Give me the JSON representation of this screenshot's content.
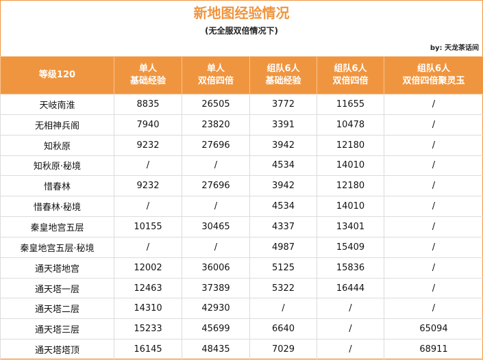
{
  "title": "新地图经验情况",
  "subtitle": "(无全服双倍情况下)",
  "byline": "by:  天龙茶话间",
  "columns": [
    {
      "line1": "等级120",
      "line2": ""
    },
    {
      "line1": "单人",
      "line2": "基础经验"
    },
    {
      "line1": "单人",
      "line2": "双倍四倍"
    },
    {
      "line1": "组队6人",
      "line2": "基础经验"
    },
    {
      "line1": "组队6人",
      "line2": "双倍四倍"
    },
    {
      "line1": "组队6人",
      "line2": "双倍四倍聚灵玉"
    }
  ],
  "rows": [
    [
      "天岐南淮",
      "8835",
      "26505",
      "3772",
      "11655",
      "/"
    ],
    [
      "无相神兵阁",
      "7940",
      "23820",
      "3391",
      "10478",
      "/"
    ],
    [
      "知秋原",
      "9232",
      "27696",
      "3942",
      "12180",
      "/"
    ],
    [
      "知秋原·秘境",
      "/",
      "/",
      "4534",
      "14010",
      "/"
    ],
    [
      "惜春林",
      "9232",
      "27696",
      "3942",
      "12180",
      "/"
    ],
    [
      "惜春林·秘境",
      "/",
      "/",
      "4534",
      "14010",
      "/"
    ],
    [
      "秦皇地宫五层",
      "10155",
      "30465",
      "4337",
      "13401",
      "/"
    ],
    [
      "秦皇地宫五层·秘境",
      "/",
      "/",
      "4987",
      "15409",
      "/"
    ],
    [
      "通天塔地宫",
      "12002",
      "36006",
      "5125",
      "15836",
      "/"
    ],
    [
      "通天塔一层",
      "12463",
      "37389",
      "5322",
      "16444",
      "/"
    ],
    [
      "通天塔二层",
      "14310",
      "42930",
      "/",
      "/",
      "/"
    ],
    [
      "通天塔三层",
      "15233",
      "45699",
      "6640",
      "/",
      "65094"
    ],
    [
      "通天塔塔顶",
      "16145",
      "48435",
      "7029",
      "/",
      "68911"
    ]
  ],
  "colors": {
    "header_bg": "#f0953f",
    "title": "#f0953f"
  }
}
